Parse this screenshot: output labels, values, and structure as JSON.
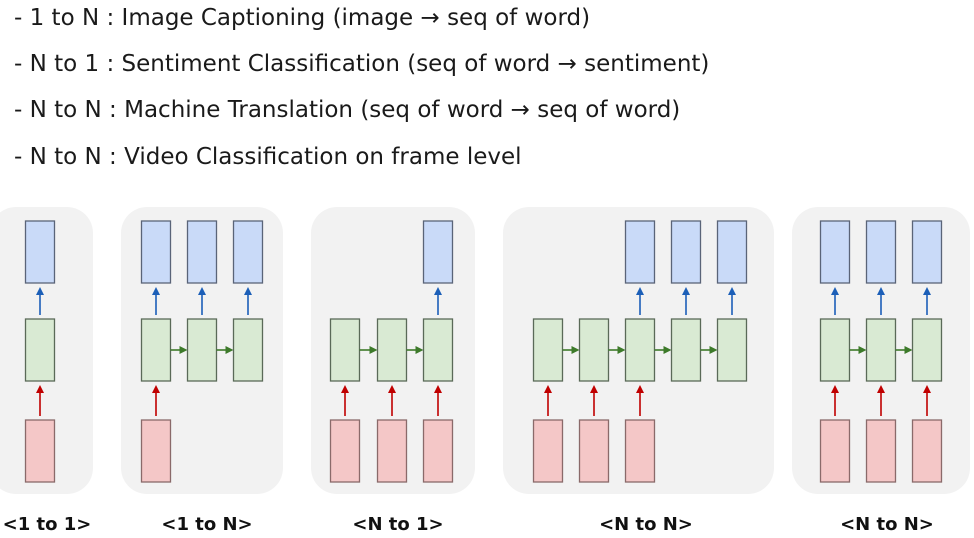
{
  "bullets": [
    "- 1 to N : Image Captioning (image → seq of word)",
    "- N to 1 : Sentiment Classification (seq of word → sentiment)",
    "- N to N : Machine Translation (seq of word → seq of word)",
    "- N to N : Video Classification on frame level"
  ],
  "panels": [
    {
      "label": "<1 to 1>",
      "inputs": [
        true
      ],
      "outputs": [
        true
      ]
    },
    {
      "label": "<1 to N>",
      "inputs": [
        true,
        false,
        false
      ],
      "outputs": [
        true,
        true,
        true
      ]
    },
    {
      "label": "<N to 1>",
      "inputs": [
        true,
        true,
        true
      ],
      "outputs": [
        false,
        false,
        true
      ]
    },
    {
      "label": "<N to N>",
      "inputs": [
        true,
        true,
        true,
        false,
        false
      ],
      "outputs": [
        false,
        false,
        true,
        true,
        true
      ]
    },
    {
      "label": "<N to N>",
      "inputs": [
        true,
        true,
        true
      ],
      "outputs": [
        true,
        true,
        true
      ]
    }
  ],
  "colors": {
    "panel_bg": "#f2f2f2",
    "input_fill": "#f4c7c7",
    "input_stroke": "#8a6a6a",
    "hidden_fill": "#d9ead3",
    "hidden_stroke": "#5a6a58",
    "output_fill": "#c9daf8",
    "output_stroke": "#5a6478",
    "input_arrow": "#c00000",
    "output_arrow": "#1c5fb8",
    "recurrent_arrow": "#3d7a2a"
  }
}
